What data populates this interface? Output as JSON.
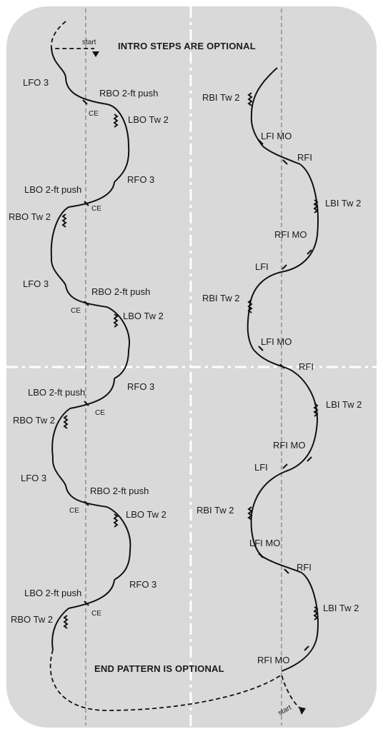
{
  "notes": {
    "intro": "INTRO STEPS ARE OPTIONAL",
    "end": "END PATTERN IS OPTIONAL"
  },
  "markers": {
    "start_top": "start",
    "start_bottom": "start"
  },
  "left_pattern": {
    "labels": [
      "LFO 3",
      "RBO 2-ft push",
      "CE",
      "LBO Tw 2",
      "RFO 3",
      "LBO 2-ft push",
      "CE",
      "RBO Tw 2",
      "LFO 3",
      "RBO 2-ft push",
      "CE",
      "LBO Tw 2",
      "LBO 2-ft push",
      "RFO 3",
      "CE",
      "RBO Tw 2",
      "LFO 3",
      "RBO 2-ft push",
      "CE",
      "LBO Tw 2",
      "LBO 2-ft push",
      "RFO 3",
      "CE",
      "RBO Tw 2"
    ]
  },
  "right_pattern": {
    "labels": [
      "RBI Tw 2",
      "LFI MO",
      "RFI",
      "LBI Tw 2",
      "RFI MO",
      "LFI",
      "RBI Tw 2",
      "LFI MO",
      "RFI",
      "LBI Tw 2",
      "RFI MO",
      "LFI",
      "RBI Tw 2",
      "LFI MO",
      "RFI",
      "LBI Tw 2",
      "RFI MO"
    ]
  },
  "colors": {
    "rink_fill": "#d9d9d9",
    "tracing": "#111111",
    "axis_dashed": "#8f8f8f",
    "center_lines": "#ffffff"
  }
}
